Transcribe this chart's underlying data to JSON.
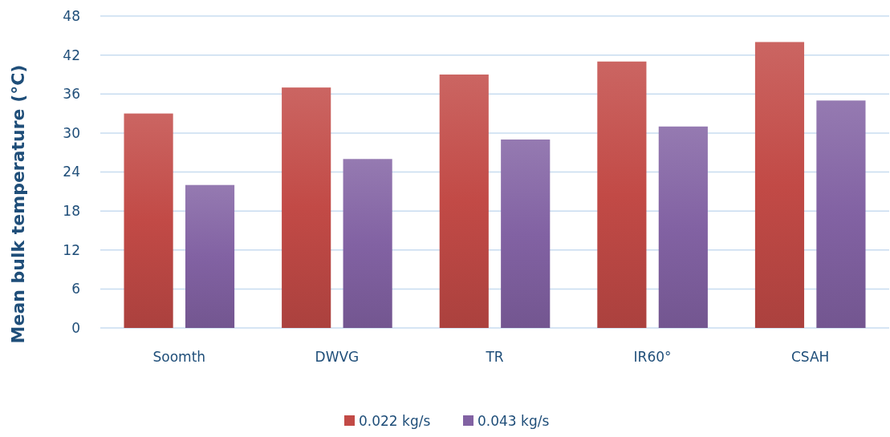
{
  "chart_data": {
    "type": "bar",
    "categories": [
      "Soomth",
      "DWVG",
      "TR",
      "IR60°",
      "CSAH"
    ],
    "series": [
      {
        "name": "0.022 kg/s",
        "color": "#c24a46",
        "values": [
          33,
          37,
          39,
          41,
          44
        ]
      },
      {
        "name": "0.043 kg/s",
        "color": "#8262a3",
        "values": [
          22,
          26,
          29,
          31,
          35
        ]
      }
    ],
    "ylabel": "Mean bulk temperature (°C)",
    "ylim": [
      0,
      48
    ],
    "yticks": [
      0,
      6,
      12,
      18,
      24,
      30,
      36,
      42,
      48
    ],
    "grid": "y",
    "legend": "bottom"
  }
}
